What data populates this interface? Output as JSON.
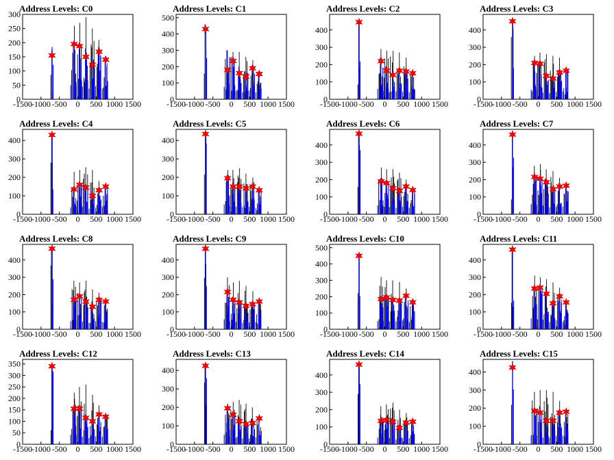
{
  "chart_data": {
    "type": "grid-of-histograms",
    "x_range": [
      -1500,
      1500
    ],
    "x_ticks": [
      -1500,
      -1000,
      -500,
      0,
      500,
      1000,
      1500
    ],
    "peak_x": [
      -700,
      -100,
      50,
      220,
      400,
      580,
      760
    ],
    "colors": {
      "blue_histogram": "#0000ff",
      "black_histogram": "#000000",
      "markers": "#ff0000"
    },
    "panels": [
      {
        "title": "Address Levels: C0",
        "y_ticks": [
          0,
          50,
          100,
          150,
          200,
          250,
          300
        ],
        "ylim": [
          0,
          300
        ],
        "markers": [
          155,
          195,
          188,
          150,
          122,
          168,
          140
        ],
        "black_peaks": [
          175,
          260,
          270,
          290,
          250,
          210,
          150
        ],
        "blue_peaks": [
          185,
          200,
          200,
          180,
          150,
          185,
          150
        ]
      },
      {
        "title": "Address Levels: C1",
        "y_ticks": [
          0,
          100,
          200,
          300,
          400,
          500
        ],
        "ylim": [
          0,
          520
        ],
        "markers": [
          430,
          180,
          235,
          160,
          140,
          190,
          155
        ],
        "black_peaks": [
          460,
          300,
          290,
          290,
          260,
          240,
          170
        ],
        "blue_peaks": [
          440,
          300,
          260,
          200,
          170,
          210,
          170
        ]
      },
      {
        "title": "Address Levels: C2",
        "y_ticks": [
          0,
          100,
          200,
          300,
          400
        ],
        "ylim": [
          0,
          490
        ],
        "markers": [
          445,
          220,
          165,
          140,
          165,
          160,
          150
        ],
        "black_peaks": [
          450,
          290,
          280,
          280,
          270,
          240,
          170
        ],
        "blue_peaks": [
          450,
          240,
          190,
          160,
          180,
          175,
          165
        ]
      },
      {
        "title": "Address Levels: C3",
        "y_ticks": [
          0,
          100,
          200,
          300,
          400
        ],
        "ylim": [
          0,
          490
        ],
        "markers": [
          450,
          210,
          205,
          135,
          120,
          155,
          165
        ],
        "black_peaks": [
          455,
          250,
          270,
          260,
          250,
          240,
          180
        ],
        "blue_peaks": [
          455,
          225,
          220,
          150,
          140,
          170,
          180
        ]
      },
      {
        "title": "Address Levels: C4",
        "y_ticks": [
          0,
          100,
          200,
          300,
          400
        ],
        "ylim": [
          0,
          460
        ],
        "markers": [
          430,
          135,
          160,
          145,
          100,
          130,
          150
        ],
        "black_peaks": [
          440,
          230,
          240,
          255,
          240,
          180,
          160
        ],
        "blue_peaks": [
          435,
          150,
          175,
          160,
          120,
          145,
          160
        ]
      },
      {
        "title": "Address Levels: C5",
        "y_ticks": [
          0,
          100,
          200,
          300,
          400
        ],
        "ylim": [
          0,
          460
        ],
        "markers": [
          435,
          195,
          150,
          150,
          140,
          150,
          130
        ],
        "black_peaks": [
          440,
          240,
          240,
          250,
          220,
          200,
          140
        ],
        "blue_peaks": [
          440,
          210,
          170,
          165,
          155,
          165,
          140
        ]
      },
      {
        "title": "Address Levels: C6",
        "y_ticks": [
          0,
          100,
          200,
          300,
          400
        ],
        "ylim": [
          0,
          490
        ],
        "markers": [
          465,
          190,
          180,
          150,
          135,
          160,
          140
        ],
        "black_peaks": [
          470,
          270,
          260,
          260,
          240,
          200,
          150
        ],
        "blue_peaks": [
          470,
          205,
          195,
          165,
          150,
          175,
          150
        ]
      },
      {
        "title": "Address Levels: C7",
        "y_ticks": [
          0,
          100,
          200,
          300,
          400
        ],
        "ylim": [
          0,
          490
        ],
        "markers": [
          460,
          215,
          205,
          185,
          145,
          160,
          165
        ],
        "black_peaks": [
          465,
          280,
          290,
          260,
          250,
          210,
          170
        ],
        "blue_peaks": [
          465,
          230,
          220,
          200,
          160,
          175,
          175
        ]
      },
      {
        "title": "Address Levels: C8",
        "y_ticks": [
          0,
          100,
          200,
          300,
          400
        ],
        "ylim": [
          0,
          490
        ],
        "markers": [
          465,
          170,
          190,
          160,
          130,
          170,
          160
        ],
        "black_peaks": [
          470,
          280,
          270,
          280,
          230,
          210,
          170
        ],
        "blue_peaks": [
          470,
          190,
          205,
          175,
          145,
          185,
          170
        ]
      },
      {
        "title": "Address Levels: C9",
        "y_ticks": [
          0,
          100,
          200,
          300,
          400
        ],
        "ylim": [
          0,
          490
        ],
        "markers": [
          465,
          215,
          170,
          155,
          135,
          145,
          160
        ],
        "black_peaks": [
          470,
          300,
          270,
          280,
          250,
          220,
          170
        ],
        "blue_peaks": [
          470,
          230,
          185,
          170,
          150,
          160,
          170
        ]
      },
      {
        "title": "Address Levels: C10",
        "y_ticks": [
          0,
          100,
          200,
          300,
          400,
          500
        ],
        "ylim": [
          0,
          520
        ],
        "markers": [
          450,
          185,
          195,
          180,
          175,
          205,
          165
        ],
        "black_peaks": [
          460,
          320,
          300,
          300,
          290,
          250,
          180
        ],
        "blue_peaks": [
          460,
          200,
          210,
          195,
          190,
          215,
          175
        ]
      },
      {
        "title": "Address Levels: C11",
        "y_ticks": [
          0,
          100,
          200,
          300,
          400
        ],
        "ylim": [
          0,
          490
        ],
        "markers": [
          460,
          235,
          240,
          205,
          150,
          190,
          155
        ],
        "black_peaks": [
          465,
          310,
          300,
          290,
          270,
          240,
          170
        ],
        "blue_peaks": [
          465,
          250,
          255,
          220,
          165,
          205,
          165
        ]
      },
      {
        "title": "Address Levels: C12",
        "y_ticks": [
          0,
          50,
          100,
          150,
          200,
          250,
          300,
          350
        ],
        "ylim": [
          0,
          370
        ],
        "markers": [
          340,
          155,
          155,
          115,
          100,
          130,
          120
        ],
        "black_peaks": [
          345,
          225,
          250,
          260,
          215,
          170,
          130
        ],
        "blue_peaks": [
          345,
          165,
          165,
          130,
          110,
          140,
          130
        ]
      },
      {
        "title": "Address Levels: C13",
        "y_ticks": [
          0,
          100,
          200,
          300,
          400
        ],
        "ylim": [
          0,
          460
        ],
        "markers": [
          425,
          195,
          160,
          125,
          110,
          115,
          140
        ],
        "black_peaks": [
          430,
          220,
          230,
          240,
          220,
          200,
          150
        ],
        "blue_peaks": [
          430,
          205,
          175,
          140,
          125,
          130,
          150
        ]
      },
      {
        "title": "Address Levels: C14",
        "y_ticks": [
          0,
          100,
          200,
          300,
          400
        ],
        "ylim": [
          0,
          490
        ],
        "markers": [
          460,
          135,
          140,
          130,
          95,
          125,
          130
        ],
        "black_peaks": [
          465,
          220,
          230,
          240,
          200,
          180,
          140
        ],
        "blue_peaks": [
          465,
          150,
          155,
          145,
          110,
          140,
          140
        ]
      },
      {
        "title": "Address Levels: C15",
        "y_ticks": [
          0,
          100,
          200,
          300,
          400
        ],
        "ylim": [
          0,
          470
        ],
        "markers": [
          425,
          185,
          175,
          130,
          130,
          175,
          180
        ],
        "black_peaks": [
          460,
          290,
          300,
          300,
          290,
          240,
          190
        ],
        "blue_peaks": [
          460,
          200,
          190,
          145,
          145,
          190,
          190
        ]
      }
    ]
  }
}
